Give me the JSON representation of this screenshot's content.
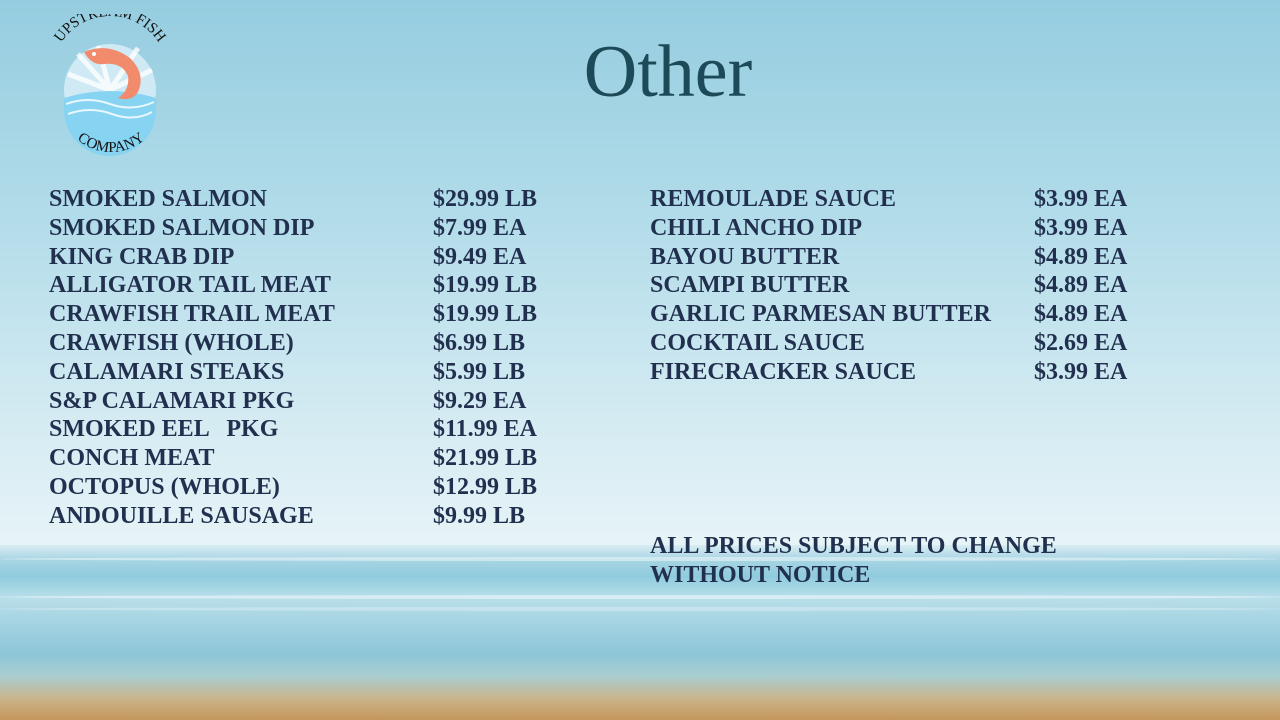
{
  "logo": {
    "text_top": "UPSTREAM FISH",
    "text_bottom": "COMPANY"
  },
  "title": "Other",
  "left_items": [
    {
      "name": "SMOKED SALMON",
      "price": "$29.99 LB"
    },
    {
      "name": "SMOKED SALMON DIP",
      "price": "$7.99 EA"
    },
    {
      "name": "KING CRAB DIP",
      "price": "$9.49 EA"
    },
    {
      "name": "ALLIGATOR TAIL MEAT",
      "price": "$19.99 LB"
    },
    {
      "name": "CRAWFISH TRAIL MEAT",
      "price": "$19.99 LB"
    },
    {
      "name": "CRAWFISH (WHOLE)",
      "price": "$6.99 LB"
    },
    {
      "name": "CALAMARI STEAKS",
      "price": "$5.99 LB"
    },
    {
      "name": "S&P CALAMARI PKG",
      "price": "$9.29 EA"
    },
    {
      "name": "SMOKED EEL   PKG",
      "price": "$11.99 EA"
    },
    {
      "name": "CONCH MEAT",
      "price": "$21.99 LB"
    },
    {
      "name": "OCTOPUS (WHOLE)",
      "price": "$12.99 LB"
    },
    {
      "name": "ANDOUILLE SAUSAGE",
      "price": "$9.99 LB"
    }
  ],
  "right_items": [
    {
      "name": "REMOULADE SAUCE",
      "price": "$3.99 EA"
    },
    {
      "name": "CHILI ANCHO DIP",
      "price": "$3.99 EA"
    },
    {
      "name": "BAYOU BUTTER",
      "price": "$4.89 EA"
    },
    {
      "name": "SCAMPI BUTTER",
      "price": "$4.89 EA"
    },
    {
      "name": "GARLIC PARMESAN BUTTER",
      "price": "$4.89 EA"
    },
    {
      "name": "COCKTAIL SAUCE",
      "price": "$2.69 EA"
    },
    {
      "name": "FIRECRACKER SAUCE",
      "price": "$3.99 EA"
    }
  ],
  "notice": "ALL PRICES SUBJECT TO CHANGE WITHOUT NOTICE"
}
